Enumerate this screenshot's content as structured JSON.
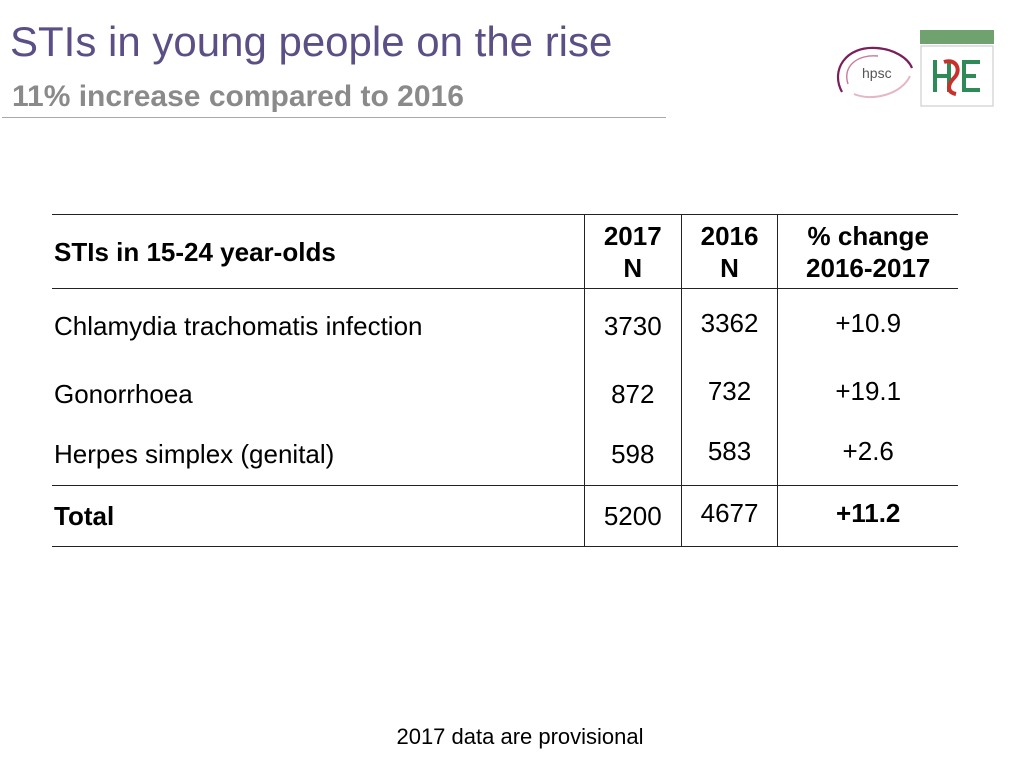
{
  "slide": {
    "title": "STIs in young people on the rise",
    "subtitle": "11% increase compared to 2016"
  },
  "logos": {
    "hpsc_text": "hpsc"
  },
  "table": {
    "header": {
      "label": "STIs in 15-24 year-olds",
      "col_2017_line1": "2017",
      "col_2017_line2": "N",
      "col_2016_line1": "2016",
      "col_2016_line2": "N",
      "col_change_line1": "% change",
      "col_change_line2": "2016-2017"
    },
    "rows": [
      {
        "name": "Chlamydia trachomatis infection",
        "n2017": "3730",
        "n2016": "3362",
        "change": "+10.9"
      },
      {
        "name": "Gonorrhoea",
        "n2017": "872",
        "n2016": "732",
        "change": "+19.1"
      },
      {
        "name": "Herpes simplex (genital)",
        "n2017": "598",
        "n2016": "583",
        "change": "+2.6"
      }
    ],
    "total": {
      "name": "Total",
      "n2017": "5200",
      "n2016": "4677",
      "change": "+11.2"
    }
  },
  "footnote": "2017 data are provisional",
  "colors": {
    "title": "#5b4f86",
    "subtitle": "#8a8a8a",
    "hpsc_purple": "#7a1f5c",
    "hse_green": "#2e8b57",
    "hse_red": "#c8302c"
  }
}
